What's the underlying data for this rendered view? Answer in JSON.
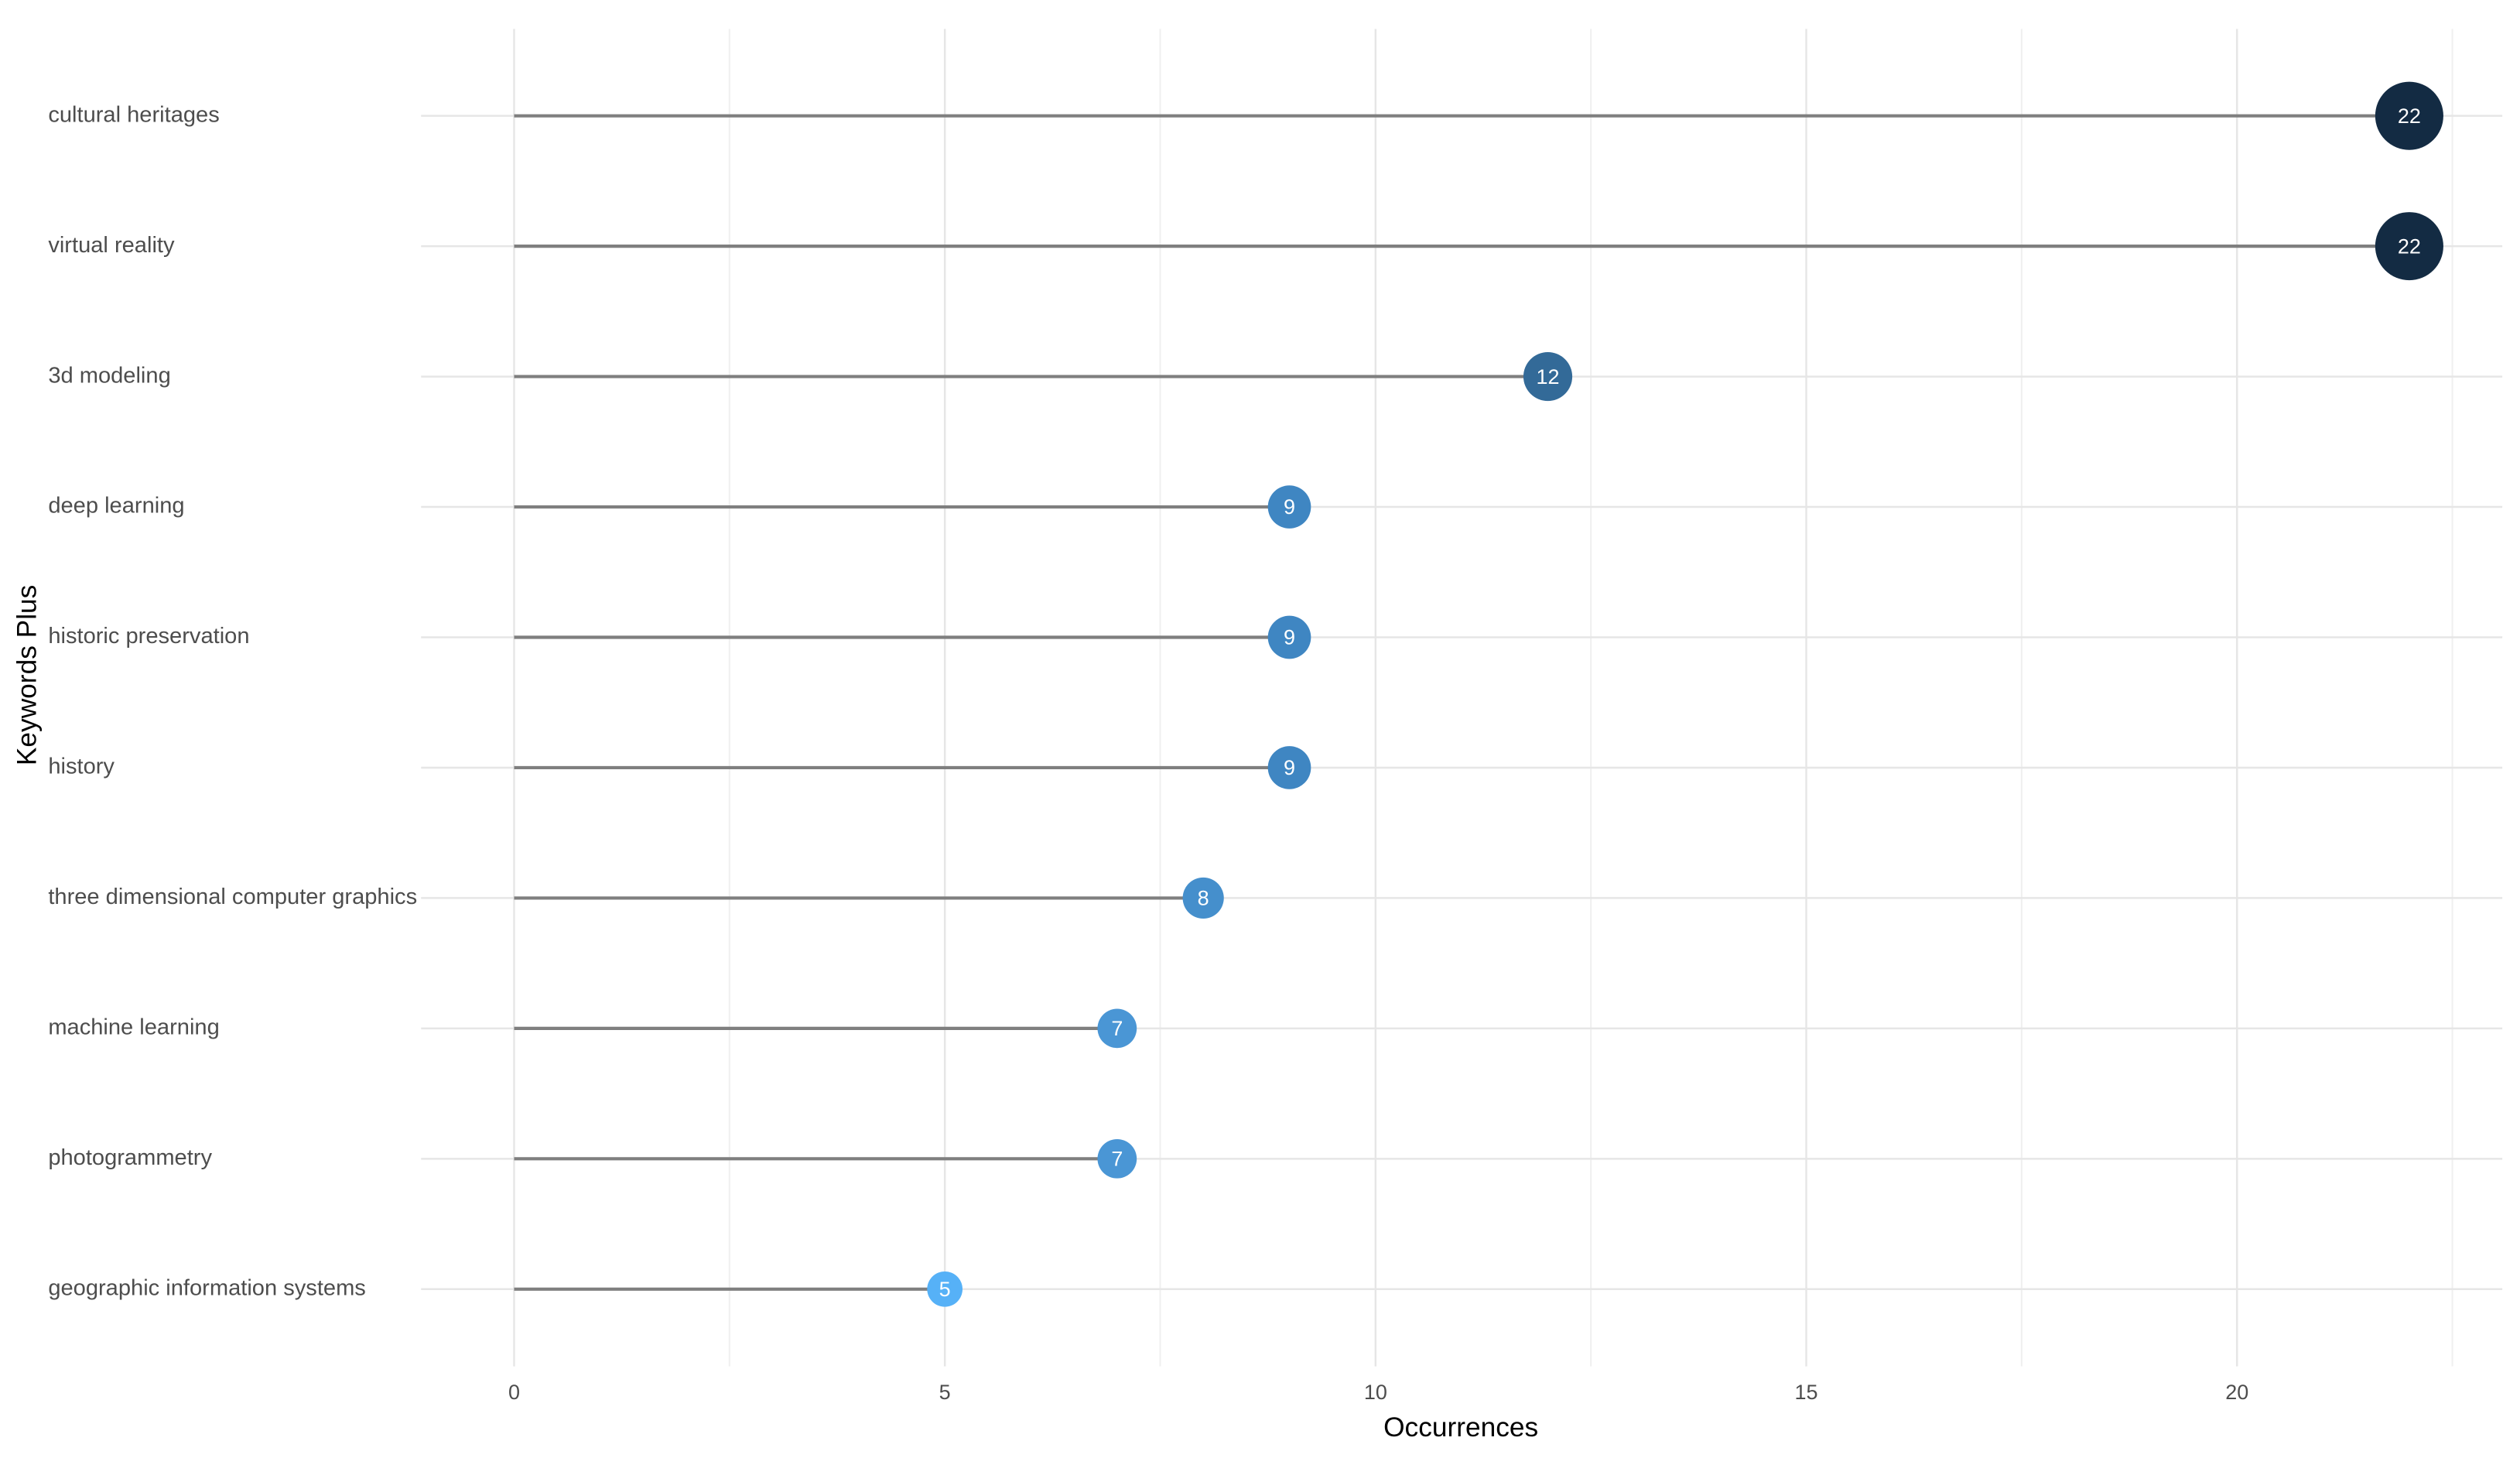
{
  "chart_data": {
    "type": "lollipop",
    "x_label": "Occurrences",
    "y_label": "Keywords Plus",
    "categories": [
      "cultural heritages",
      "virtual reality",
      "3d modeling",
      "deep learning",
      "historic preservation",
      "history",
      "three dimensional computer graphics",
      "machine learning",
      "photogrammetry",
      "geographic information systems"
    ],
    "values": [
      22,
      22,
      12,
      9,
      9,
      9,
      8,
      7,
      7,
      5
    ],
    "colors": [
      "#132b43",
      "#132b43",
      "#336a98",
      "#3f86c2",
      "#3f86c2",
      "#3f86c2",
      "#458fcc",
      "#4a96d5",
      "#4a96d5",
      "#56b1f7"
    ],
    "stem_color": "#7f7f7f",
    "xlim": [
      -1.08,
      23.08
    ],
    "xticks": [
      0,
      5,
      10,
      15,
      20
    ],
    "grid": true
  }
}
